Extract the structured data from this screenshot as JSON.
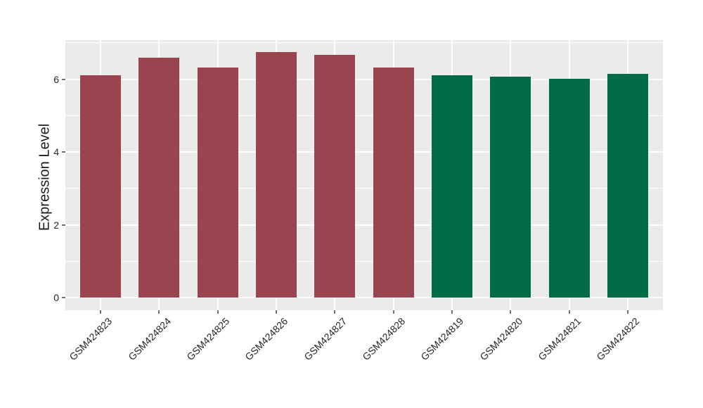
{
  "figure": {
    "background": "#FFFFFF",
    "plot_background": "#EBEBEB",
    "gridline_color": "#FFFFFF",
    "tick_mark_color": "#707070",
    "tick_label_color": "#262626",
    "axis_title_color": "#1A1A1A"
  },
  "chart_data": {
    "type": "bar",
    "title": "",
    "xlabel": "",
    "ylabel": "Expression Level",
    "categories": [
      "GSM424823",
      "GSM424824",
      "GSM424825",
      "GSM424826",
      "GSM424827",
      "GSM424828",
      "GSM424819",
      "GSM424820",
      "GSM424821",
      "GSM424822"
    ],
    "values": [
      6.1,
      6.58,
      6.31,
      6.74,
      6.67,
      6.32,
      6.1,
      6.06,
      6.01,
      6.14
    ],
    "bar_colors": [
      "#9A4450",
      "#9A4450",
      "#9A4450",
      "#9A4450",
      "#9A4450",
      "#9A4450",
      "#006B48",
      "#006B48",
      "#006B48",
      "#006B48"
    ],
    "group_colors": {
      "red_group": "#9A4450",
      "green_group": "#006B48"
    },
    "yticks_major": [
      0,
      2,
      4,
      6
    ],
    "yticks_minor": [
      1,
      3,
      5,
      7
    ],
    "ylim": [
      0,
      7.07
    ],
    "grid": "white major+minor horizontal, white vertical at each category, on gray panel",
    "legend": "none",
    "x_tick_rotation_deg": -45
  }
}
